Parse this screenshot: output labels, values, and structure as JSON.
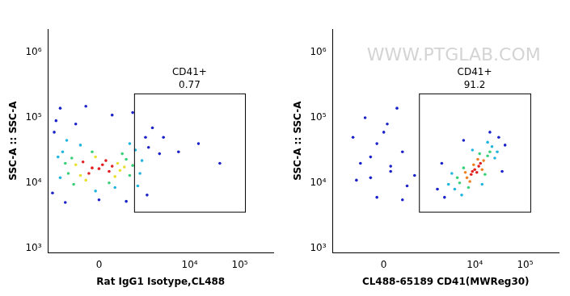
{
  "chart_data": [
    {
      "type": "scatter",
      "x_label": "Rat IgG1 Isotype,CL488",
      "y_label": "SSC-A :: SSC-A",
      "log": "y",
      "grid": false,
      "xlim": [
        -1600,
        465000
      ],
      "xticks": [
        0,
        {
          "value": 10000,
          "label": "10⁴"
        },
        {
          "value": 100000,
          "label": "10⁵"
        }
      ],
      "ylim": [
        850,
        2300000
      ],
      "yticks": [
        {
          "value": 1000,
          "label": "10³"
        },
        {
          "value": 10000,
          "label": "10⁴"
        },
        {
          "value": 100000,
          "label": "10⁵"
        },
        {
          "value": 1000000,
          "label": "10⁶"
        }
      ],
      "gate": {
        "label": "CD41+",
        "percent": 0.77,
        "xlim": [
          750,
          127000
        ],
        "ylim": [
          3600,
          236000
        ]
      },
      "series": [
        {
          "color": "#1a22c8",
          "values": [
            [
              -1200,
              60000
            ],
            [
              1300,
              50000
            ],
            [
              -400,
              80000
            ],
            [
              200,
              110000
            ],
            [
              -900,
              140000
            ],
            [
              700,
              120000
            ],
            [
              -1300,
              7000
            ],
            [
              1400,
              6500
            ],
            [
              0,
              5500
            ],
            [
              -700,
              5000
            ],
            [
              500,
              5200
            ],
            [
              -1100,
              90000
            ],
            [
              1500,
              35000
            ],
            [
              2500,
              28000
            ],
            [
              1800,
              70000
            ],
            [
              -200,
              150000
            ],
            [
              3000,
              50000
            ],
            [
              6000,
              30000
            ],
            [
              15000,
              40000
            ],
            [
              40000,
              20000
            ]
          ]
        },
        {
          "color": "#1fb5e0",
          "values": [
            [
              -800,
              30000
            ],
            [
              800,
              32000
            ],
            [
              -300,
              38000
            ],
            [
              250,
              8500
            ],
            [
              -900,
              12000
            ],
            [
              1000,
              14000
            ],
            [
              -50,
              7500
            ],
            [
              600,
              40000
            ],
            [
              -650,
              45000
            ],
            [
              900,
              9000
            ],
            [
              -1000,
              25000
            ],
            [
              1100,
              22000
            ]
          ]
        },
        {
          "color": "#39d07a",
          "values": [
            [
              -500,
              24000
            ],
            [
              500,
              23000
            ],
            [
              -600,
              14000
            ],
            [
              600,
              13000
            ],
            [
              -100,
              30000
            ],
            [
              150,
              10000
            ],
            [
              -450,
              9500
            ],
            [
              400,
              28000
            ],
            [
              700,
              18500
            ],
            [
              -700,
              20000
            ]
          ]
        },
        {
          "color": "#e8e030",
          "values": [
            [
              -300,
              13000
            ],
            [
              300,
              20000
            ],
            [
              -400,
              19000
            ],
            [
              350,
              15500
            ],
            [
              -50,
              25000
            ],
            [
              250,
              12500
            ],
            [
              -200,
              11000
            ],
            [
              450,
              17500
            ]
          ]
        },
        {
          "color": "#e02020",
          "values": [
            [
              -100,
              17000
            ],
            [
              50,
              19000
            ],
            [
              150,
              15000
            ],
            [
              -250,
              21000
            ],
            [
              0,
              16500
            ],
            [
              200,
              18000
            ],
            [
              -150,
              14000
            ],
            [
              100,
              22000
            ]
          ]
        }
      ]
    },
    {
      "type": "scatter",
      "x_label": "CL488-65189 CD41(MWReg30)",
      "y_label": "SSC-A :: SSC-A",
      "watermark": "WWW.PTGLAB.COM",
      "log": "y",
      "grid": false,
      "xlim": [
        -1600,
        465000
      ],
      "xticks": [
        0,
        {
          "value": 10000,
          "label": "10⁴"
        },
        {
          "value": 100000,
          "label": "10⁵"
        }
      ],
      "ylim": [
        850,
        2300000
      ],
      "yticks": [
        {
          "value": 1000,
          "label": "10³"
        },
        {
          "value": 10000,
          "label": "10⁴"
        },
        {
          "value": 100000,
          "label": "10⁵"
        },
        {
          "value": 1000000,
          "label": "10⁶"
        }
      ],
      "gate": {
        "label": "CD41+",
        "percent": 91.2,
        "xlim": [
          750,
          127000
        ],
        "ylim": [
          3600,
          236000
        ]
      },
      "series": [
        {
          "color": "#1a22c8",
          "values": [
            [
              2500,
              6000
            ],
            [
              30000,
              50000
            ],
            [
              40000,
              38000
            ],
            [
              2200,
              20000
            ],
            [
              6000,
              45000
            ],
            [
              20000,
              60000
            ],
            [
              35000,
              15000
            ],
            [
              1800,
              8000
            ],
            [
              -200,
              12000
            ],
            [
              100,
              15000
            ],
            [
              -400,
              20000
            ],
            [
              300,
              30000
            ],
            [
              -100,
              40000
            ],
            [
              0,
              60000
            ],
            [
              -300,
              100000
            ],
            [
              200,
              140000
            ],
            [
              -500,
              11000
            ],
            [
              400,
              9000
            ],
            [
              -200,
              25000
            ],
            [
              100,
              18000
            ],
            [
              -600,
              50000
            ],
            [
              600,
              13000
            ],
            [
              50,
              80000
            ],
            [
              -100,
              6000
            ],
            [
              300,
              5500
            ]
          ]
        },
        {
          "color": "#1fb5e0",
          "values": [
            [
              4000,
              8000
            ],
            [
              22000,
              36000
            ],
            [
              3500,
              14000
            ],
            [
              25000,
              24000
            ],
            [
              9000,
              32000
            ],
            [
              14000,
              9500
            ],
            [
              5500,
              6500
            ],
            [
              18000,
              42000
            ],
            [
              3000,
              9500
            ],
            [
              28000,
              30000
            ]
          ]
        },
        {
          "color": "#39d07a",
          "values": [
            [
              5000,
              10000
            ],
            [
              18000,
              26000
            ],
            [
              6000,
              17000
            ],
            [
              16000,
              13500
            ],
            [
              12500,
              28000
            ],
            [
              7500,
              8500
            ],
            [
              20000,
              30000
            ],
            [
              4500,
              12000
            ]
          ]
        },
        {
          "color": "#f08020",
          "values": [
            [
              7000,
              12000
            ],
            [
              15000,
              22000
            ],
            [
              9500,
              19000
            ],
            [
              14000,
              16000
            ],
            [
              6500,
              14500
            ],
            [
              11500,
              23000
            ],
            [
              8000,
              10500
            ]
          ]
        },
        {
          "color": "#e02020",
          "values": [
            [
              10000,
              16000
            ],
            [
              12000,
              18000
            ],
            [
              9000,
              15000
            ],
            [
              11000,
              14500
            ],
            [
              13000,
              20000
            ],
            [
              8500,
              13500
            ]
          ]
        }
      ]
    }
  ]
}
